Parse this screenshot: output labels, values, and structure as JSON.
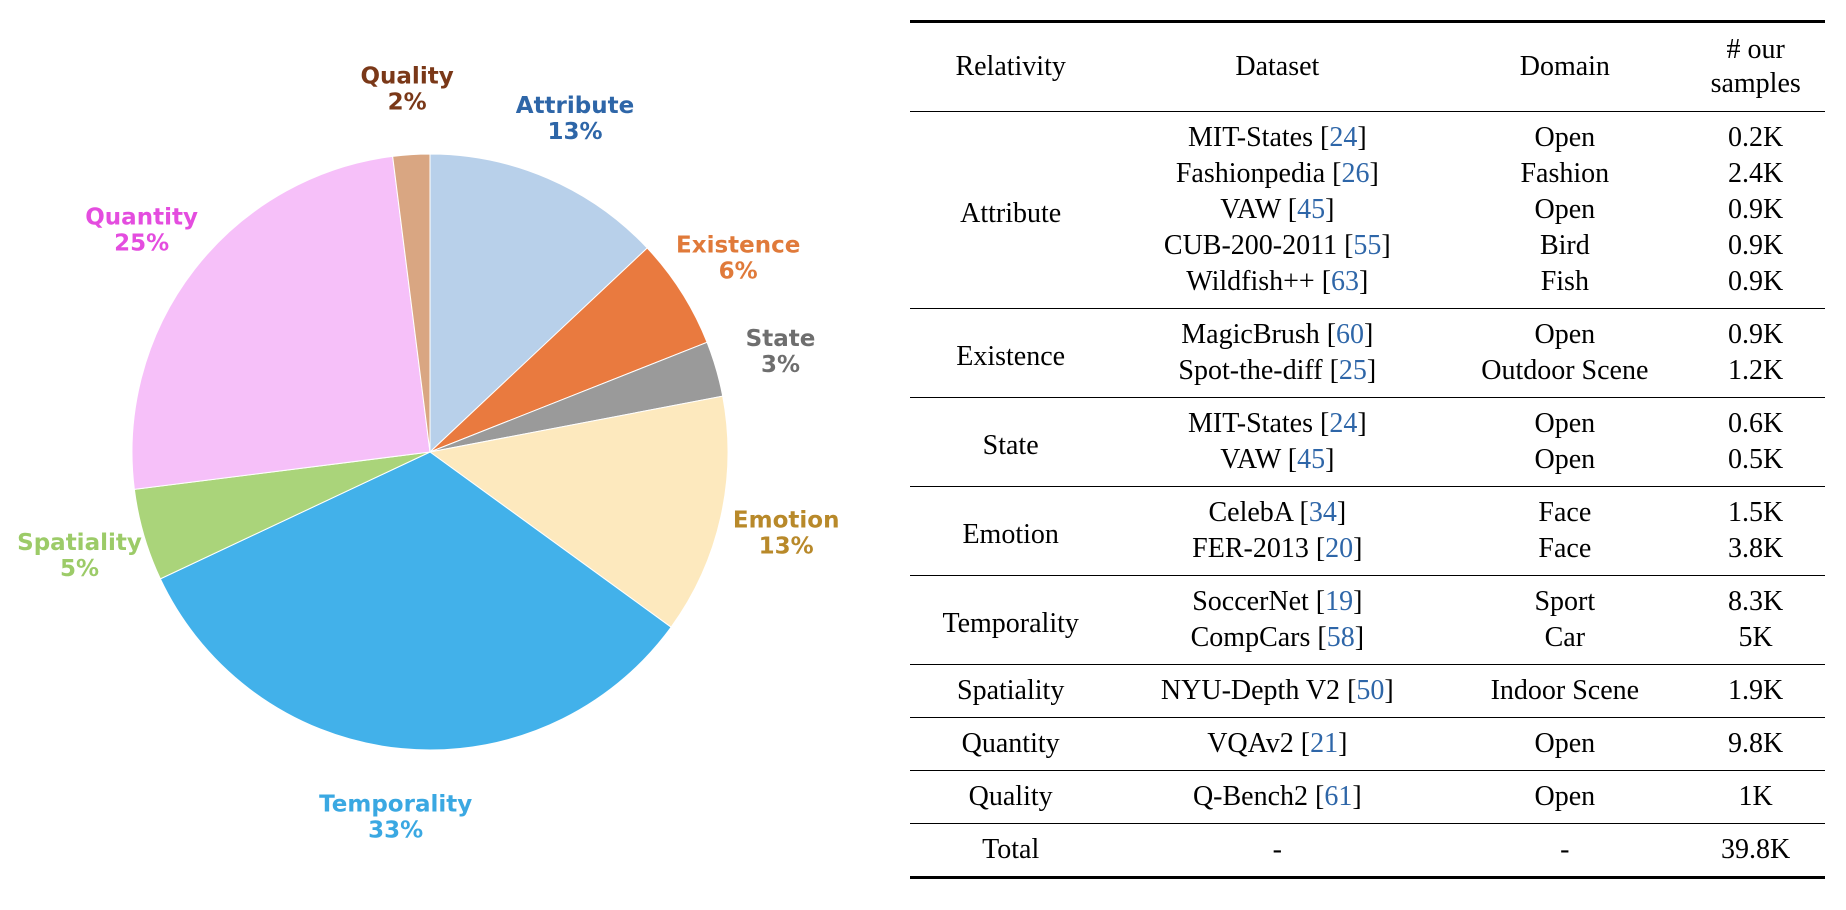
{
  "chart_data": {
    "type": "pie",
    "title": "",
    "start": "top",
    "direction": "clockwise",
    "slices": [
      {
        "label": "Attribute",
        "value": 13,
        "display": "13%",
        "color": "#b8d0ea",
        "label_color": "#2e66a8"
      },
      {
        "label": "Existence",
        "value": 6,
        "display": "6%",
        "color": "#e97a3f",
        "label_color": "#e07a3a"
      },
      {
        "label": "State",
        "value": 3,
        "display": "3%",
        "color": "#9a9a9a",
        "label_color": "#6e6e6e"
      },
      {
        "label": "Emotion",
        "value": 13,
        "display": "13%",
        "color": "#fde9be",
        "label_color": "#b8892a"
      },
      {
        "label": "Temporality",
        "value": 33,
        "display": "33%",
        "color": "#42b1ea",
        "label_color": "#3aa8e2"
      },
      {
        "label": "Spatiality",
        "value": 5,
        "display": "5%",
        "color": "#aad47a",
        "label_color": "#9ccb68"
      },
      {
        "label": "Quantity",
        "value": 25,
        "display": "25%",
        "color": "#f6c0f9",
        "label_color": "#e44ddf"
      },
      {
        "label": "Quality",
        "value": 2,
        "display": "2%",
        "color": "#d9a682",
        "label_color": "#7a3818"
      }
    ]
  },
  "table": {
    "headers": {
      "relativity": "Relativity",
      "dataset": "Dataset",
      "domain": "Domain",
      "samples_line1": "# our",
      "samples_line2": "samples"
    },
    "groups": [
      {
        "relativity": "Attribute",
        "rows": [
          {
            "dataset": "MIT-States",
            "ref": "24",
            "domain": "Open",
            "samples": "0.2K"
          },
          {
            "dataset": "Fashionpedia",
            "ref": "26",
            "domain": "Fashion",
            "samples": "2.4K"
          },
          {
            "dataset": "VAW",
            "ref": "45",
            "domain": "Open",
            "samples": "0.9K"
          },
          {
            "dataset": "CUB-200-2011",
            "ref": "55",
            "domain": "Bird",
            "samples": "0.9K"
          },
          {
            "dataset": "Wildfish++",
            "ref": "63",
            "domain": "Fish",
            "samples": "0.9K"
          }
        ]
      },
      {
        "relativity": "Existence",
        "rows": [
          {
            "dataset": "MagicBrush",
            "ref": "60",
            "domain": "Open",
            "samples": "0.9K"
          },
          {
            "dataset": "Spot-the-diff",
            "ref": "25",
            "domain": "Outdoor Scene",
            "samples": "1.2K"
          }
        ]
      },
      {
        "relativity": "State",
        "rows": [
          {
            "dataset": "MIT-States",
            "ref": "24",
            "domain": "Open",
            "samples": "0.6K"
          },
          {
            "dataset": "VAW",
            "ref": "45",
            "domain": "Open",
            "samples": "0.5K"
          }
        ]
      },
      {
        "relativity": "Emotion",
        "rows": [
          {
            "dataset": "CelebA",
            "ref": "34",
            "domain": "Face",
            "samples": "1.5K"
          },
          {
            "dataset": "FER-2013",
            "ref": "20",
            "domain": "Face",
            "samples": "3.8K"
          }
        ]
      },
      {
        "relativity": "Temporality",
        "rows": [
          {
            "dataset": "SoccerNet",
            "ref": "19",
            "domain": "Sport",
            "samples": "8.3K"
          },
          {
            "dataset": "CompCars",
            "ref": "58",
            "domain": "Car",
            "samples": "5K"
          }
        ]
      },
      {
        "relativity": "Spatiality",
        "rows": [
          {
            "dataset": "NYU-Depth V2",
            "ref": "50",
            "domain": "Indoor Scene",
            "samples": "1.9K"
          }
        ]
      },
      {
        "relativity": "Quantity",
        "rows": [
          {
            "dataset": "VQAv2",
            "ref": "21",
            "domain": "Open",
            "samples": "9.8K"
          }
        ]
      },
      {
        "relativity": "Quality",
        "rows": [
          {
            "dataset": "Q-Bench2",
            "ref": "61",
            "domain": "Open",
            "samples": "1K"
          }
        ]
      }
    ],
    "total": {
      "relativity": "Total",
      "dataset": "-",
      "domain": "-",
      "samples": "39.8K"
    }
  }
}
